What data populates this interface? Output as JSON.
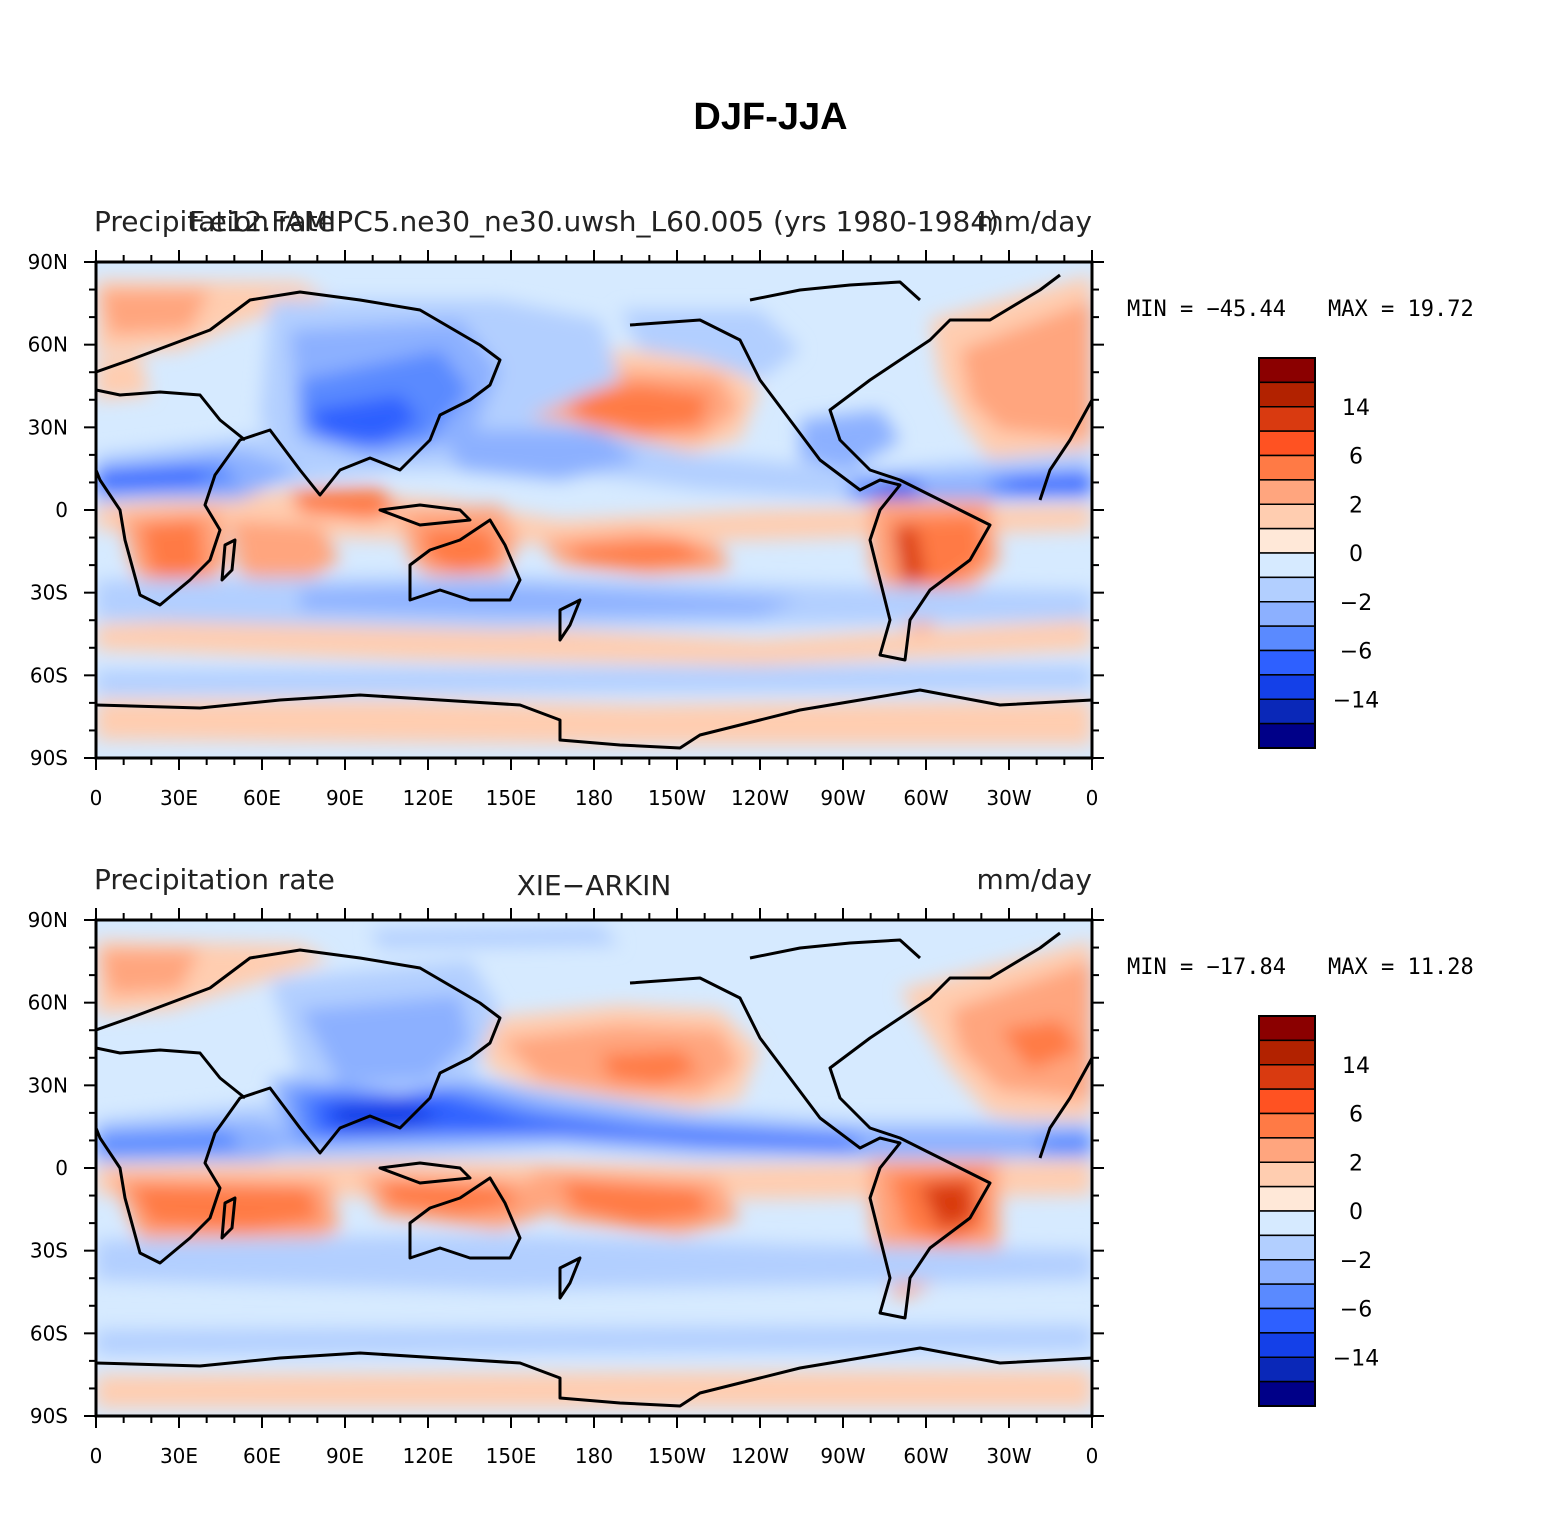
{
  "title": "DJF-JJA",
  "panels": [
    {
      "left_label": "Precipitation rate",
      "center_label": "F.e12.FAMIPC5.ne30_ne30.uwsh_L60.005 (yrs 1980-1984)",
      "right_label": "mm/day",
      "min_label": "MIN = −45.44",
      "max_label": "MAX =   19.72"
    },
    {
      "left_label": "Precipitation rate",
      "center_label": "XIE−ARKIN",
      "right_label": "mm/day",
      "min_label": "MIN = −17.84",
      "max_label": "MAX =   11.28"
    }
  ],
  "lat_ticks": [
    "90N",
    "60N",
    "30N",
    "0",
    "30S",
    "60S",
    "90S"
  ],
  "lon_ticks": [
    "0",
    "30E",
    "60E",
    "90E",
    "120E",
    "150E",
    "180",
    "150W",
    "120W",
    "90W",
    "60W",
    "30W",
    "0"
  ],
  "colorbar": {
    "labels": [
      "14",
      "6",
      "2",
      "0",
      "−2",
      "−6",
      "−14"
    ],
    "colors": [
      "#8b0000",
      "#b22200",
      "#d93a10",
      "#ff5222",
      "#ff7a45",
      "#ffa57e",
      "#ffcdb0",
      "#ffe8d8",
      "#d6eaff",
      "#b2cfff",
      "#8cb0ff",
      "#5a8aff",
      "#2e60ff",
      "#1440e8",
      "#0a28b8",
      "#000088"
    ]
  },
  "chart_data": [
    {
      "type": "heatmap",
      "title": "DJF-JJA",
      "subtitle": "F.e12.FAMIPC5.ne30_ne30.uwsh_L60.005 (yrs 1980-1984)",
      "variable": "Precipitation rate",
      "units": "mm/day",
      "min": -45.44,
      "max": 19.72,
      "x_range": [
        0,
        360
      ],
      "y_range": [
        -90,
        90
      ],
      "contour_levels": [
        -14,
        -6,
        -2,
        0,
        2,
        6,
        14
      ]
    },
    {
      "type": "heatmap",
      "title": "DJF-JJA",
      "subtitle": "XIE−ARKIN",
      "variable": "Precipitation rate",
      "units": "mm/day",
      "min": -17.84,
      "max": 11.28,
      "x_range": [
        0,
        360
      ],
      "y_range": [
        -90,
        90
      ],
      "contour_levels": [
        -14,
        -6,
        -2,
        0,
        2,
        6,
        14
      ]
    }
  ]
}
